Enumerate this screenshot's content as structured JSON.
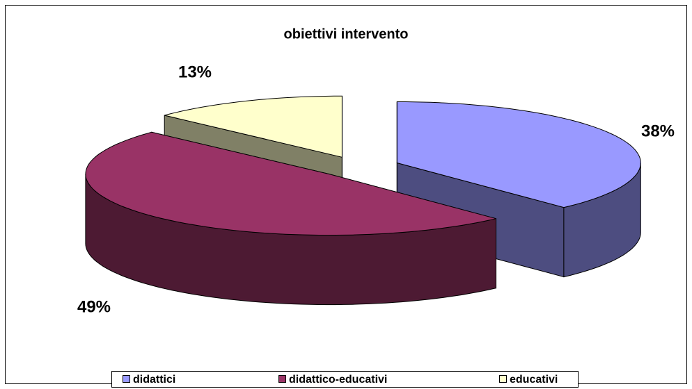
{
  "chart_data": {
    "type": "pie",
    "title": "obiettivi intervento",
    "categories": [
      "didattici",
      "didattico-educativi",
      "educativi"
    ],
    "values": [
      38,
      49,
      13
    ],
    "value_labels": [
      "38%",
      "49%",
      "13%"
    ],
    "colors": [
      "#9999ff",
      "#993366",
      "#ffffcc"
    ],
    "legend": "bottom"
  }
}
